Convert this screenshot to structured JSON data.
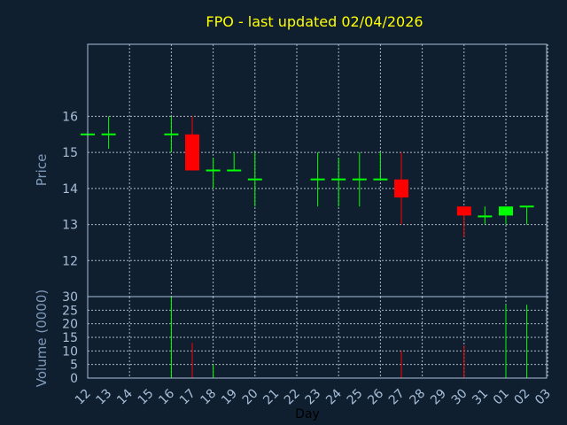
{
  "chart_data": [
    {
      "type": "candlestick",
      "title": "FPO - last updated 02/04/2026",
      "ylabel": "Price",
      "ylim": [
        11,
        18
      ],
      "yticks": [
        12,
        13,
        14,
        15,
        16
      ],
      "categories": [
        "12",
        "13",
        "14",
        "15",
        "16",
        "17",
        "18",
        "19",
        "20",
        "21",
        "22",
        "23",
        "24",
        "25",
        "26",
        "27",
        "28",
        "29",
        "30",
        "31",
        "01",
        "02",
        "03"
      ],
      "candles": [
        {
          "day": "12",
          "open": 15.5,
          "high": 15.5,
          "low": 15.5,
          "close": 15.5
        },
        {
          "day": "13",
          "open": 15.5,
          "high": 16.0,
          "low": 15.1,
          "close": 15.5
        },
        {
          "day": "16",
          "open": 15.5,
          "high": 16.0,
          "low": 15.0,
          "close": 15.5
        },
        {
          "day": "17",
          "open": 15.5,
          "high": 16.0,
          "low": 14.5,
          "close": 14.5
        },
        {
          "day": "18",
          "open": 14.5,
          "high": 14.85,
          "low": 14.0,
          "close": 14.5
        },
        {
          "day": "19",
          "open": 14.5,
          "high": 15.0,
          "low": 14.5,
          "close": 14.5
        },
        {
          "day": "20",
          "open": 14.25,
          "high": 15.0,
          "low": 13.5,
          "close": 14.25
        },
        {
          "day": "23",
          "open": 14.25,
          "high": 15.0,
          "low": 13.5,
          "close": 14.25
        },
        {
          "day": "24",
          "open": 14.25,
          "high": 14.85,
          "low": 13.5,
          "close": 14.25
        },
        {
          "day": "25",
          "open": 14.25,
          "high": 15.0,
          "low": 13.5,
          "close": 14.25
        },
        {
          "day": "26",
          "open": 14.25,
          "high": 15.0,
          "low": 14.25,
          "close": 14.25
        },
        {
          "day": "27",
          "open": 14.25,
          "high": 15.0,
          "low": 13.0,
          "close": 13.75
        },
        {
          "day": "30",
          "open": 13.5,
          "high": 13.5,
          "low": 12.65,
          "close": 13.25
        },
        {
          "day": "31",
          "open": 13.2,
          "high": 13.5,
          "low": 13.0,
          "close": 13.25
        },
        {
          "day": "01",
          "open": 13.25,
          "high": 13.5,
          "low": 13.0,
          "close": 13.5
        },
        {
          "day": "02",
          "open": 13.5,
          "high": 13.5,
          "low": 13.0,
          "close": 13.5
        }
      ],
      "colors": {
        "up": "#00ff00",
        "down": "#ff0000",
        "grid": "#c8d2dc",
        "axis": "#a8bfd8",
        "background": "#0f1f30"
      }
    },
    {
      "type": "bar",
      "ylabel": "Volume (0000)",
      "xlabel": "Day",
      "ylim": [
        0,
        30
      ],
      "yticks": [
        0,
        5,
        10,
        15,
        20,
        25,
        30
      ],
      "categories": [
        "12",
        "13",
        "14",
        "15",
        "16",
        "17",
        "18",
        "19",
        "20",
        "21",
        "22",
        "23",
        "24",
        "25",
        "26",
        "27",
        "28",
        "29",
        "30",
        "31",
        "01",
        "02",
        "03"
      ],
      "values": [
        {
          "day": "16",
          "volume": 30,
          "direction": "up"
        },
        {
          "day": "17",
          "volume": 13,
          "direction": "down"
        },
        {
          "day": "18",
          "volume": 5,
          "direction": "up"
        },
        {
          "day": "27",
          "volume": 10,
          "direction": "down"
        },
        {
          "day": "30",
          "volume": 12,
          "direction": "down"
        },
        {
          "day": "01",
          "volume": 27,
          "direction": "up"
        },
        {
          "day": "02",
          "volume": 27,
          "direction": "up"
        }
      ]
    }
  ]
}
